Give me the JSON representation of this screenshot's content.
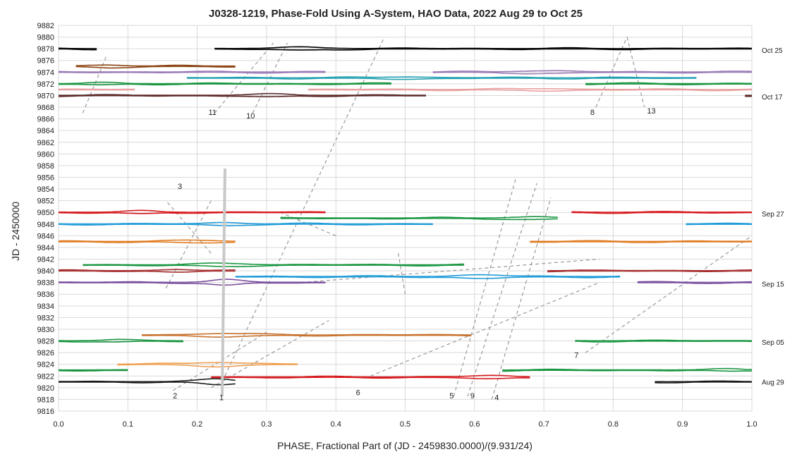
{
  "chart_data": {
    "type": "line",
    "title": "J0328-1219, Phase-Fold Using A-System, HAO Data, 2022 Aug 29 to Oct 25",
    "xlabel": "PHASE, Fractional Part of (JD - 2459830.0000)/(9.931/24)",
    "ylabel": "JD - 2450000",
    "xlim": [
      0.0,
      1.0
    ],
    "ylim": [
      9816,
      9882
    ],
    "x_ticks": [
      0.0,
      0.1,
      0.2,
      0.3,
      0.4,
      0.5,
      0.6,
      0.7,
      0.8,
      0.9,
      1.0
    ],
    "x_tick_labels": [
      "0.0",
      "0.1",
      "0.2",
      "0.3",
      "0.4",
      "0.5",
      "0.6",
      "0.7",
      "0.8",
      "0.9",
      "1.0"
    ],
    "y_ticks": [
      9816,
      9818,
      9820,
      9822,
      9824,
      9826,
      9828,
      9830,
      9832,
      9834,
      9836,
      9838,
      9840,
      9842,
      9844,
      9846,
      9848,
      9850,
      9852,
      9854,
      9856,
      9858,
      9860,
      9862,
      9864,
      9866,
      9868,
      9870,
      9872,
      9874,
      9876,
      9878,
      9880,
      9882
    ],
    "grid": true,
    "right_date_labels": [
      {
        "text": "Oct 25",
        "y": 9877.8
      },
      {
        "text": "Oct 17",
        "y": 9869.8
      },
      {
        "text": "Sep 27",
        "y": 9849.8
      },
      {
        "text": "Sep 15",
        "y": 9837.8
      },
      {
        "text": "Sep 05",
        "y": 9827.8
      },
      {
        "text": "Aug 29",
        "y": 9821.0
      }
    ],
    "night_traces": [
      {
        "y": 9821.0,
        "color": "#1a1a1a",
        "segments": [
          [
            0.0,
            0.255
          ],
          [
            0.86,
            1.0
          ]
        ],
        "bump": {
          "x": 0.23,
          "amp": 1.0,
          "w": 0.03
        }
      },
      {
        "y": 9821.8,
        "color": "#d7191c",
        "segments": [
          [
            0.22,
            0.68
          ]
        ],
        "bump": {
          "x": 0.62,
          "amp": 0.5,
          "w": 0.04
        }
      },
      {
        "y": 9823.0,
        "color": "#1a9641",
        "segments": [
          [
            0.0,
            0.1
          ],
          [
            0.64,
            1.0
          ]
        ],
        "bump": {
          "x": 0.97,
          "amp": 0.3,
          "w": 0.03
        }
      },
      {
        "y": 9824.0,
        "color": "#f0a050",
        "segments": [
          [
            0.085,
            0.345
          ]
        ],
        "bump": {
          "x": 0.23,
          "amp": 0.6,
          "w": 0.05
        }
      },
      {
        "y": 9828.0,
        "color": "#1a9641",
        "segments": [
          [
            0.0,
            0.18
          ],
          [
            0.745,
            1.0
          ]
        ],
        "bump": {
          "x": 0.08,
          "amp": 0.3,
          "w": 0.03
        }
      },
      {
        "y": 9829.0,
        "color": "#c8702a",
        "segments": [
          [
            0.12,
            0.595
          ]
        ],
        "bump": {
          "x": 0.24,
          "amp": 0.5,
          "w": 0.05
        }
      },
      {
        "y": 9838.0,
        "color": "#7b4f9e",
        "segments": [
          [
            0.0,
            0.385
          ],
          [
            0.835,
            1.0
          ]
        ],
        "bump": {
          "x": 0.24,
          "amp": 0.9,
          "w": 0.03
        }
      },
      {
        "y": 9839.0,
        "color": "#1f9bd7",
        "segments": [
          [
            0.255,
            0.81
          ]
        ],
        "bump": {
          "x": 0.61,
          "amp": 0.6,
          "w": 0.04
        }
      },
      {
        "y": 9840.0,
        "color": "#a83232",
        "segments": [
          [
            0.0,
            0.255
          ],
          [
            0.705,
            1.0
          ]
        ],
        "bump": {
          "x": 0.17,
          "amp": 0.4,
          "w": 0.03
        }
      },
      {
        "y": 9841.0,
        "color": "#1a9641",
        "segments": [
          [
            0.035,
            0.585
          ]
        ],
        "bump": {
          "x": 0.24,
          "amp": 0.5,
          "w": 0.04
        }
      },
      {
        "y": 9845.0,
        "color": "#e07b20",
        "segments": [
          [
            0.0,
            0.255
          ],
          [
            0.68,
            1.0
          ]
        ],
        "bump": {
          "x": 0.2,
          "amp": 0.4,
          "w": 0.04
        }
      },
      {
        "y": 9848.0,
        "color": "#1f9bd7",
        "segments": [
          [
            0.0,
            0.54
          ],
          [
            0.905,
            1.0
          ]
        ],
        "bump": {
          "x": 0.24,
          "amp": 0.5,
          "w": 0.03
        }
      },
      {
        "y": 9849.0,
        "color": "#1a9641",
        "segments": [
          [
            0.32,
            0.72
          ]
        ],
        "bump": {
          "x": 0.68,
          "amp": 0.4,
          "w": 0.04
        }
      },
      {
        "y": 9850.0,
        "color": "#d7191c",
        "segments": [
          [
            0.0,
            0.385
          ],
          [
            0.74,
            1.0
          ]
        ],
        "bump": {
          "x": 0.12,
          "amp": 0.4,
          "w": 0.03
        }
      },
      {
        "y": 9870.0,
        "color": "#5c2a2a",
        "segments": [
          [
            0.0,
            0.53
          ],
          [
            0.99,
            1.0
          ]
        ],
        "bump": {
          "x": 0.3,
          "amp": 0.4,
          "w": 0.04
        }
      },
      {
        "y": 9871.0,
        "color": "#e8a0a0",
        "segments": [
          [
            0.0,
            0.11
          ],
          [
            0.36,
            1.0
          ]
        ],
        "bump": {
          "x": 0.7,
          "amp": 0.3,
          "w": 0.05
        }
      },
      {
        "y": 9872.0,
        "color": "#1a9641",
        "segments": [
          [
            0.0,
            0.48
          ],
          [
            0.76,
            1.0
          ]
        ],
        "bump": {
          "x": 0.06,
          "amp": 0.3,
          "w": 0.03
        }
      },
      {
        "y": 9873.0,
        "color": "#20a0b0",
        "segments": [
          [
            0.185,
            0.92
          ]
        ],
        "bump": {
          "x": 0.5,
          "amp": 0.3,
          "w": 0.05
        }
      },
      {
        "y": 9874.0,
        "color": "#9b7bb6",
        "segments": [
          [
            0.0,
            0.385
          ],
          [
            0.54,
            1.0
          ]
        ],
        "bump": {
          "x": 0.7,
          "amp": 0.4,
          "w": 0.05
        }
      },
      {
        "y": 9875.0,
        "color": "#8b4513",
        "segments": [
          [
            0.025,
            0.255
          ]
        ],
        "bump": {
          "x": 0.07,
          "amp": 0.4,
          "w": 0.03
        }
      },
      {
        "y": 9878.0,
        "color": "#000000",
        "segments": [
          [
            0.0,
            0.055
          ],
          [
            0.225,
            1.0
          ]
        ],
        "bump": {
          "x": 0.35,
          "amp": 0.4,
          "w": 0.05
        }
      }
    ],
    "guide_lines": [
      [
        [
          0.165,
          9819.5
        ],
        [
          0.3,
          9829.5
        ]
      ],
      [
        [
          0.22,
          9820
        ],
        [
          0.39,
          9831.5
        ]
      ],
      [
        [
          0.35,
          9838
        ],
        [
          0.78,
          9842
        ]
      ],
      [
        [
          0.45,
          9822
        ],
        [
          0.78,
          9838
        ]
      ],
      [
        [
          0.57,
          9818.5
        ],
        [
          0.66,
          9856
        ]
      ],
      [
        [
          0.59,
          9818.5
        ],
        [
          0.69,
          9855
        ]
      ],
      [
        [
          0.625,
          9818
        ],
        [
          0.71,
          9852.5
        ]
      ],
      [
        [
          0.76,
          9826
        ],
        [
          1.0,
          9846
        ]
      ],
      [
        [
          0.155,
          9837
        ],
        [
          0.22,
          9852
        ]
      ],
      [
        [
          0.22,
          9843
        ],
        [
          0.155,
          9852
        ]
      ],
      [
        [
          0.4,
          9846
        ],
        [
          0.32,
          9850
        ]
      ],
      [
        [
          0.49,
          9843
        ],
        [
          0.5,
          9836
        ]
      ],
      [
        [
          0.24,
          9822
        ],
        [
          0.47,
          9880
        ]
      ],
      [
        [
          0.225,
          9867
        ],
        [
          0.31,
          9879
        ]
      ],
      [
        [
          0.28,
          9867
        ],
        [
          0.33,
          9879
        ]
      ],
      [
        [
          0.035,
          9867
        ],
        [
          0.07,
          9877
        ]
      ],
      [
        [
          0.775,
          9868
        ],
        [
          0.82,
          9880
        ]
      ],
      [
        [
          0.82,
          9880
        ],
        [
          0.845,
          9868
        ]
      ]
    ],
    "vertical_marker": {
      "x": 0.236,
      "y_from": 9818.5,
      "y_to": 9857.5,
      "color": "#c8c8c8"
    },
    "annotations": [
      {
        "text": "1",
        "x": 0.235,
        "y": 9817.9
      },
      {
        "text": "2",
        "x": 0.168,
        "y": 9818.2
      },
      {
        "text": "3",
        "x": 0.175,
        "y": 9854.0
      },
      {
        "text": "4",
        "x": 0.632,
        "y": 9817.9
      },
      {
        "text": "5",
        "x": 0.567,
        "y": 9818.2
      },
      {
        "text": "6",
        "x": 0.432,
        "y": 9818.7
      },
      {
        "text": "7",
        "x": 0.747,
        "y": 9825.1
      },
      {
        "text": "8",
        "x": 0.77,
        "y": 9866.7
      },
      {
        "text": "9",
        "x": 0.597,
        "y": 9818.2
      },
      {
        "text": "10",
        "x": 0.277,
        "y": 9866.1
      },
      {
        "text": "11",
        "x": 0.222,
        "y": 9866.7
      },
      {
        "text": "13",
        "x": 0.855,
        "y": 9866.9
      }
    ]
  }
}
